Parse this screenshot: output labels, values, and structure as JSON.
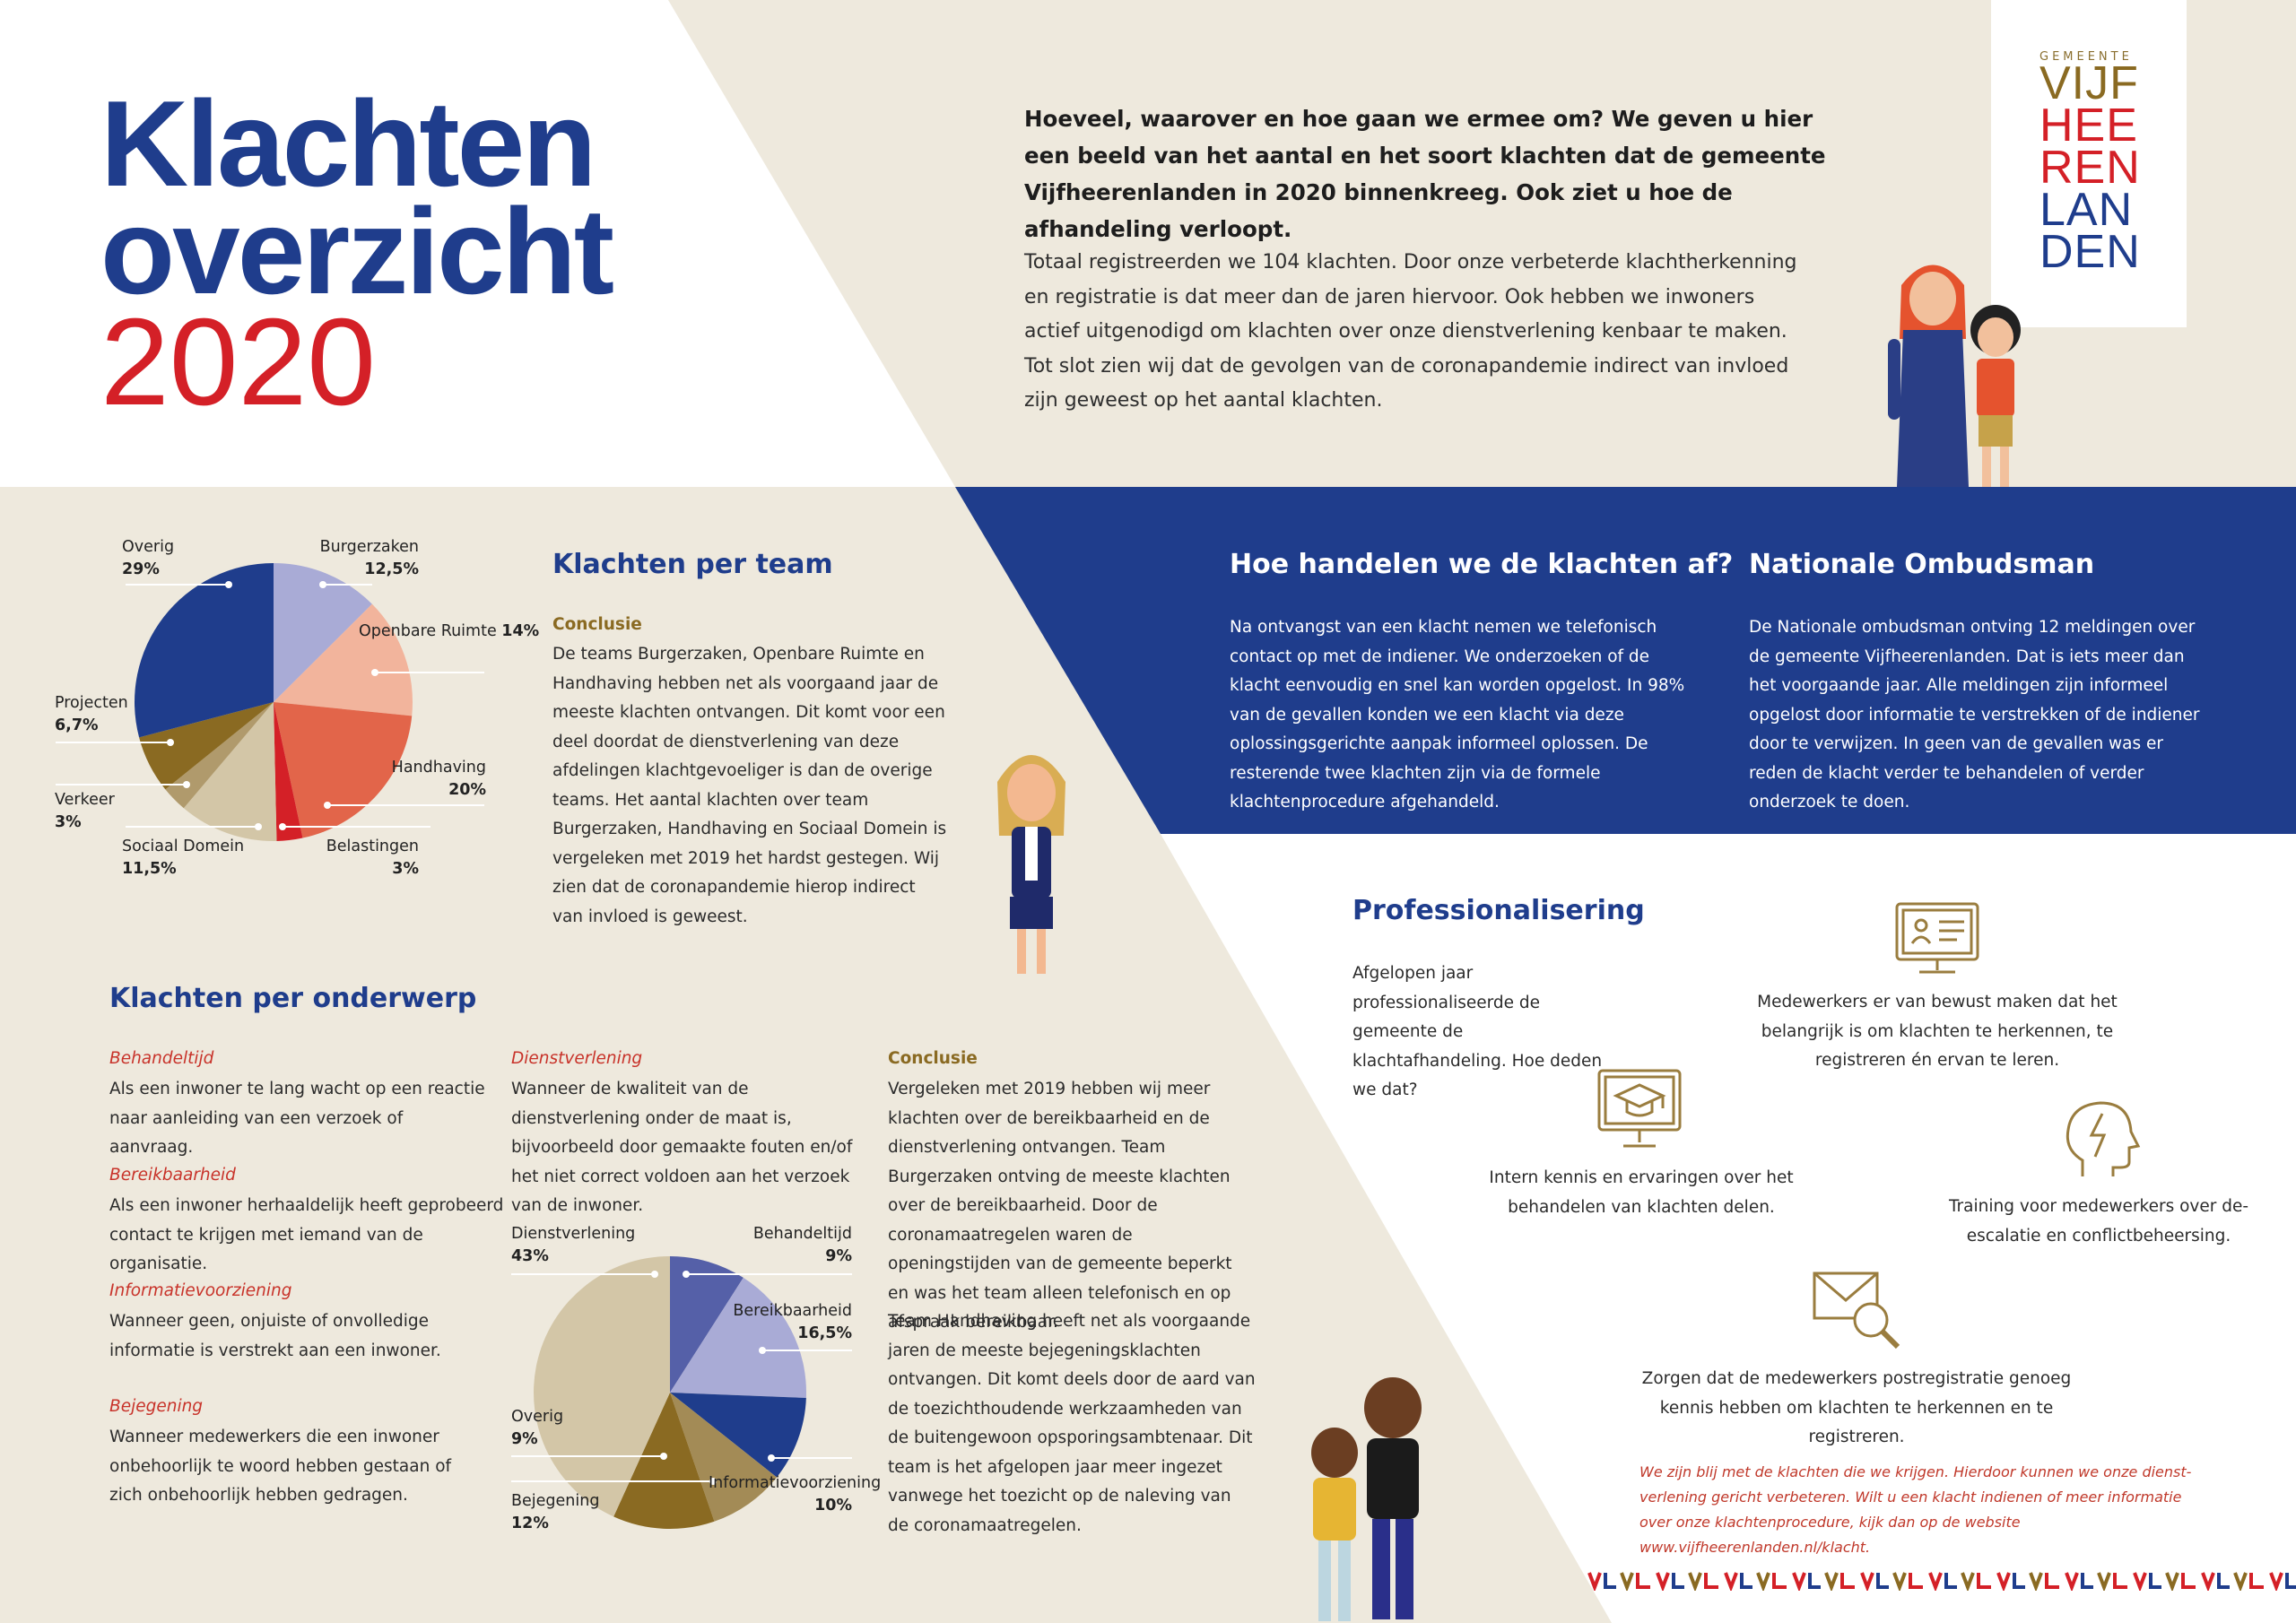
{
  "title": {
    "line1": "Klachten",
    "line2": "overzicht",
    "year": "2020"
  },
  "intro": {
    "lead": "Hoeveel, waarover en hoe gaan we ermee om? We geven u hier een beeld van het aantal en het soort klachten dat de gemeente Vijfheeren­landen in 2020 binnenkreeg. Ook ziet u hoe de afhandeling verloopt.",
    "body": "Totaal registreerden we 104 klachten. Door onze verbeterde klachtherkenning en registratie is dat meer dan de jaren hiervoor. Ook hebben we inwoners actief uitgenodigd om klachten over onze dienstverlening kenbaar te maken. Tot slot zien wij dat de gevolgen van de coronapandemie indirect van invloed zijn geweest op het aantal klachten."
  },
  "logo": {
    "small": "GEMEENTE",
    "lines": [
      "VIJF",
      "HEE",
      "REN",
      "LAN",
      "DEN"
    ]
  },
  "colors": {
    "navy": "#1f3d8c",
    "red": "#d42027",
    "beige": "#eee9dd",
    "gold": "#8a6a22"
  },
  "per_team": {
    "title": "Klachten per team",
    "conclusion_head": "Conclusie",
    "conclusion": "De teams Burgerzaken, Openbare Ruimte en Hand­having hebben net als voorgaand jaar de meeste klachten ontvangen. Dit komt voor een deel doordat de dienstverlening van deze afdelingen klachtgevoeliger is dan de overige teams. Het aantal klachten over team Burgerzaken, Handhaving en Sociaal Domein is vergeleken met 2019 het hardst gestegen. Wij zien dat de coronapandemie hierop indirect van invloed is geweest."
  },
  "afhandeling": {
    "title": "Hoe handelen we de klachten af?",
    "text": "Na ontvangst van een klacht nemen we telefonisch contact op met de indiener. We onderzoeken of de klacht eenvoudig en snel kan worden opgelost. In 98% van de gevallen konden we een klacht via deze oplossingsgerichte aanpak informeel oplossen. De resterende twee klachten zijn via de formele klachtenprocedure afgehandeld."
  },
  "ombudsman": {
    "title": "Nationale Ombudsman",
    "text": "De Nationale ombudsman ontving 12 meldingen over de gemeente Vijfheerenlanden. Dat is iets meer dan het voorgaande jaar. Alle meldingen zijn informeel opgelost door informatie te verstrekken of de indiener door te verwijzen. In geen van de gevallen was er reden de klacht verder te behandelen of verder onderzoek te doen."
  },
  "professionalisering": {
    "title": "Professionalisering",
    "intro": "Afgelopen jaar professionaliseerde de gemeente de klachtafhandeling. Hoe deden we dat?",
    "items": [
      {
        "icon": "id-card-monitor-icon",
        "text": "Medewerkers er van bewust maken dat het belangrijk is om klachten te herkennen, te registreren én ervan te leren."
      },
      {
        "icon": "graduation-monitor-icon",
        "text": "Intern kennis en ervaringen over het behandelen van klachten delen."
      },
      {
        "icon": "head-lightning-icon",
        "text": "Training voor medewerkers over de-escalatie en conflictbeheersing."
      },
      {
        "icon": "envelope-search-icon",
        "text": "Zorgen dat de medewerkers postregistratie genoeg kennis hebben om klachten te herkennen en te registreren."
      }
    ],
    "outro": "We zijn blij met de klachten die we krijgen. Hierdoor kunnen we onze dienst­verlening gericht verbeteren. Wilt u een klacht indienen of meer informatie over onze klachtenprocedure, kijk dan op de website www.vijfheerenlanden.nl/klacht."
  },
  "per_onderwerp": {
    "title": "Klachten per onderwerp",
    "definitions": [
      {
        "head": "Behandeltijd",
        "text": "Als een inwoner te lang wacht op een reactie naar aanleiding van een verzoek of aanvraag."
      },
      {
        "head": "Bereikbaarheid",
        "text": "Als een inwoner herhaaldelijk heeft geprobeerd contact te krijgen met iemand van de organisatie."
      },
      {
        "head": "Informatievoorziening",
        "text": "Wanneer geen, onjuiste of onvolledige informatie is verstrekt aan een inwoner."
      },
      {
        "head": "Bejegening",
        "text": "Wanneer medewerkers die een inwoner onbehoorlijk te woord hebben gestaan of zich onbehoorlijk hebben gedragen."
      },
      {
        "head": "Dienstverlening",
        "text": "Wanneer de kwaliteit van de dienstverlening onder de maat is, bijvoorbeeld door gemaakte fouten en/of het niet correct voldoen aan het verzoek van de inwoner."
      }
    ],
    "conclusion_head": "Conclusie",
    "conclusion_p1": "Vergeleken met 2019 hebben wij meer klachten over de bereikbaarheid en de dienstverlening ontvangen. Team Burgerzaken ontving de meeste klachten over de bereikbaarheid. Door de coronamaatregelen waren de openingstijden van de gemeente beperkt en was het team alleen telefonisch en op afspraak bereikbaar.",
    "conclusion_p2": "Team Handhaving heeft net als voorgaande jaren de meeste bejegeningsklachten ontvangen. Dit komt deels door de aard van de toezichthoudende werkzaamheden van de buitengewoon opsporingsambtenaar. Dit team is het afgelopen jaar meer ingezet vanwege het toezicht op de naleving van de coronamaatregelen."
  },
  "chart_data": [
    {
      "type": "pie",
      "title": "Klachten per team",
      "slices": [
        {
          "name": "Burgerzaken",
          "label": "12,5%",
          "value": 12.5,
          "color": "#a9abd6"
        },
        {
          "name": "Openbare Ruimte",
          "label": "14%",
          "value": 14,
          "color": "#f2b49c"
        },
        {
          "name": "Handhaving",
          "label": "20%",
          "value": 20,
          "color": "#e2654a"
        },
        {
          "name": "Belastingen",
          "label": "3%",
          "value": 3,
          "color": "#d42027"
        },
        {
          "name": "Sociaal Domein",
          "label": "11,5%",
          "value": 11.5,
          "color": "#d3c6a7"
        },
        {
          "name": "Verkeer",
          "label": "3%",
          "value": 3,
          "color": "#b09a6c"
        },
        {
          "name": "Projecten",
          "label": "6,7%",
          "value": 6.7,
          "color": "#8a6a22"
        },
        {
          "name": "Overig",
          "label": "29%",
          "value": 29,
          "color": "#1f3d8c"
        }
      ]
    },
    {
      "type": "pie",
      "title": "Klachten per onderwerp",
      "slices": [
        {
          "name": "Behandeltijd",
          "label": "9%",
          "value": 9,
          "color": "#5560a8"
        },
        {
          "name": "Bereikbaarheid",
          "label": "16,5%",
          "value": 16.5,
          "color": "#a9abd6"
        },
        {
          "name": "Informatievoorziening",
          "label": "10%",
          "value": 10,
          "color": "#1f3d8c"
        },
        {
          "name": "Overig",
          "label": "9%",
          "value": 9,
          "color": "#a38b56"
        },
        {
          "name": "Bejegening",
          "label": "12%",
          "value": 12,
          "color": "#8a6a22"
        },
        {
          "name": "Dienstverlening",
          "label": "43%",
          "value": 43,
          "color": "#d3c6a7"
        }
      ]
    }
  ]
}
